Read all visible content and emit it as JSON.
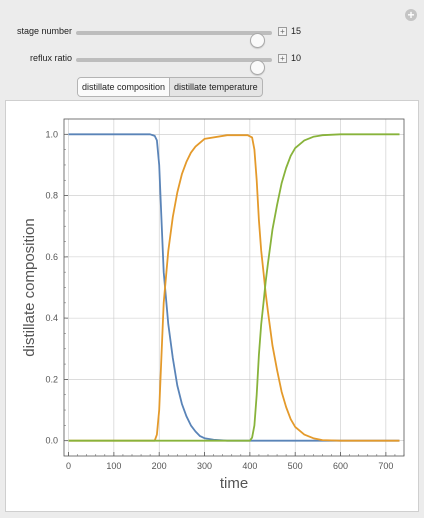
{
  "controls": {
    "stage_number": {
      "label": "stage number",
      "value": "15",
      "fraction": 0.96
    },
    "reflux_ratio": {
      "label": "reflux ratio",
      "value": "10",
      "fraction": 0.96
    }
  },
  "toggle": {
    "options": [
      "distillate composition",
      "distillate temperature"
    ],
    "selected": "distillate composition"
  },
  "icons": {
    "expand": "plus-circle-icon",
    "slider_more": "plus-box-icon"
  },
  "chart_data": {
    "type": "line",
    "xlabel": "time",
    "ylabel": "distillate   composition",
    "xlim": [
      -10,
      740
    ],
    "ylim": [
      -0.05,
      1.05
    ],
    "xticks": [
      0,
      100,
      200,
      300,
      400,
      500,
      600,
      700
    ],
    "yticks": [
      0.0,
      0.2,
      0.4,
      0.6,
      0.8,
      1.0
    ],
    "ytick_labels": [
      "0.0",
      "0.2",
      "0.4",
      "0.6",
      "0.8",
      "1.0"
    ],
    "grid": true,
    "series": [
      {
        "color": "#5a84b8",
        "x": [
          0,
          180,
          190,
          195,
          200,
          205,
          210,
          220,
          230,
          240,
          250,
          260,
          270,
          280,
          290,
          300,
          320,
          350,
          400,
          450,
          500,
          600,
          730
        ],
        "y": [
          1.0,
          1.0,
          0.995,
          0.98,
          0.9,
          0.72,
          0.55,
          0.38,
          0.27,
          0.18,
          0.12,
          0.08,
          0.05,
          0.03,
          0.015,
          0.008,
          0.003,
          0.0,
          0.0,
          0.0,
          0.0,
          0.0,
          0.0
        ]
      },
      {
        "color": "#e49a2b",
        "x": [
          0,
          190,
          195,
          200,
          205,
          210,
          220,
          230,
          240,
          250,
          260,
          270,
          280,
          300,
          350,
          395,
          405,
          410,
          415,
          420,
          425,
          430,
          435,
          440,
          450,
          460,
          470,
          480,
          490,
          500,
          520,
          540,
          560,
          600,
          730
        ],
        "y": [
          0.0,
          0.0,
          0.02,
          0.1,
          0.28,
          0.45,
          0.62,
          0.73,
          0.81,
          0.87,
          0.91,
          0.94,
          0.96,
          0.985,
          0.997,
          0.997,
          0.99,
          0.95,
          0.85,
          0.72,
          0.62,
          0.55,
          0.48,
          0.42,
          0.31,
          0.23,
          0.16,
          0.11,
          0.07,
          0.045,
          0.02,
          0.008,
          0.002,
          0.0,
          0.0
        ]
      },
      {
        "color": "#88b33b",
        "x": [
          0,
          400,
          405,
          410,
          415,
          420,
          425,
          430,
          435,
          440,
          450,
          460,
          470,
          480,
          490,
          500,
          520,
          540,
          560,
          600,
          730
        ],
        "y": [
          0.0,
          0.0,
          0.01,
          0.05,
          0.15,
          0.28,
          0.38,
          0.45,
          0.52,
          0.58,
          0.69,
          0.77,
          0.84,
          0.89,
          0.93,
          0.955,
          0.98,
          0.992,
          0.997,
          1.0,
          1.0
        ]
      }
    ]
  }
}
